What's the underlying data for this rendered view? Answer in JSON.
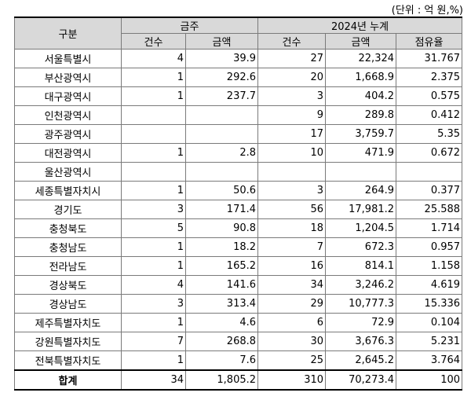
{
  "unit_label": "(단위 : 억 원,%)",
  "headers": {
    "category": "구분",
    "week_group": "금주",
    "cumulative_group": "2024년 누계",
    "week_count": "건수",
    "week_amount": "금액",
    "cum_count": "건수",
    "cum_amount": "금액",
    "cum_share": "점유율"
  },
  "rows": [
    {
      "region": "서울특별시",
      "wc": "4",
      "wa": "39.9",
      "cc": "27",
      "ca": "22,324",
      "share": "31.767"
    },
    {
      "region": "부산광역시",
      "wc": "1",
      "wa": "292.6",
      "cc": "20",
      "ca": "1,668.9",
      "share": "2.375"
    },
    {
      "region": "대구광역시",
      "wc": "1",
      "wa": "237.7",
      "cc": "3",
      "ca": "404.2",
      "share": "0.575"
    },
    {
      "region": "인천광역시",
      "wc": "",
      "wa": "",
      "cc": "9",
      "ca": "289.8",
      "share": "0.412"
    },
    {
      "region": "광주광역시",
      "wc": "",
      "wa": "",
      "cc": "17",
      "ca": "3,759.7",
      "share": "5.35"
    },
    {
      "region": "대전광역시",
      "wc": "1",
      "wa": "2.8",
      "cc": "10",
      "ca": "471.9",
      "share": "0.672"
    },
    {
      "region": "울산광역시",
      "wc": "",
      "wa": "",
      "cc": "",
      "ca": "",
      "share": ""
    },
    {
      "region": "세종특별자치시",
      "wc": "1",
      "wa": "50.6",
      "cc": "3",
      "ca": "264.9",
      "share": "0.377"
    },
    {
      "region": "경기도",
      "wc": "3",
      "wa": "171.4",
      "cc": "56",
      "ca": "17,981.2",
      "share": "25.588"
    },
    {
      "region": "충청북도",
      "wc": "5",
      "wa": "90.8",
      "cc": "18",
      "ca": "1,204.5",
      "share": "1.714"
    },
    {
      "region": "충청남도",
      "wc": "1",
      "wa": "18.2",
      "cc": "7",
      "ca": "672.3",
      "share": "0.957"
    },
    {
      "region": "전라남도",
      "wc": "1",
      "wa": "165.2",
      "cc": "16",
      "ca": "814.1",
      "share": "1.158"
    },
    {
      "region": "경상북도",
      "wc": "4",
      "wa": "141.6",
      "cc": "34",
      "ca": "3,246.2",
      "share": "4.619"
    },
    {
      "region": "경상남도",
      "wc": "3",
      "wa": "313.4",
      "cc": "29",
      "ca": "10,777.3",
      "share": "15.336"
    },
    {
      "region": "제주특별자치도",
      "wc": "1",
      "wa": "4.6",
      "cc": "6",
      "ca": "72.9",
      "share": "0.104"
    },
    {
      "region": "강원특별자치도",
      "wc": "7",
      "wa": "268.8",
      "cc": "30",
      "ca": "3,676.3",
      "share": "5.231"
    },
    {
      "region": "전북특별자치도",
      "wc": "1",
      "wa": "7.6",
      "cc": "25",
      "ca": "2,645.2",
      "share": "3.764"
    }
  ],
  "total": {
    "region": "합계",
    "wc": "34",
    "wa": "1,805.2",
    "cc": "310",
    "ca": "70,273.4",
    "share": "100"
  }
}
